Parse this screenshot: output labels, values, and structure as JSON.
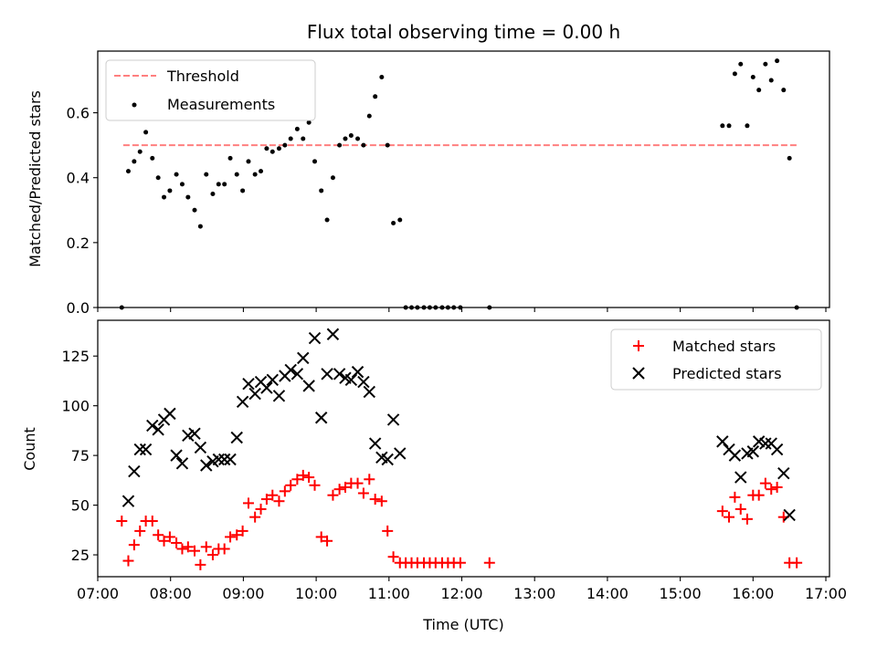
{
  "chart_data": [
    {
      "type": "scatter",
      "title": "Flux total observing time = 0.00 h",
      "ylabel": "Matched/Predicted stars",
      "xlabel": "",
      "xlim": [
        7.0,
        17.05
      ],
      "ylim": [
        0.0,
        0.79
      ],
      "xticks": [
        7,
        8,
        9,
        10,
        11,
        12,
        13,
        14,
        15,
        16,
        17
      ],
      "yticks": [
        0.0,
        0.2,
        0.4,
        0.6
      ],
      "ytick_labels": [
        "0.0",
        "0.2",
        "0.4",
        "0.6"
      ],
      "legend_position": "upper-left",
      "threshold": {
        "name": "Threshold",
        "y": 0.5,
        "x_range": [
          7.35,
          16.6
        ],
        "color": "#ff7f7f",
        "style": "dashed"
      },
      "series": [
        {
          "name": "Measurements",
          "color": "#000000",
          "marker": "dot",
          "points": [
            [
              7.33,
              0.0
            ],
            [
              7.42,
              0.42
            ],
            [
              7.5,
              0.45
            ],
            [
              7.58,
              0.48
            ],
            [
              7.66,
              0.54
            ],
            [
              7.75,
              0.46
            ],
            [
              7.83,
              0.4
            ],
            [
              7.91,
              0.34
            ],
            [
              7.99,
              0.36
            ],
            [
              8.08,
              0.41
            ],
            [
              8.16,
              0.38
            ],
            [
              8.24,
              0.34
            ],
            [
              8.33,
              0.3
            ],
            [
              8.41,
              0.25
            ],
            [
              8.49,
              0.41
            ],
            [
              8.58,
              0.35
            ],
            [
              8.66,
              0.38
            ],
            [
              8.74,
              0.38
            ],
            [
              8.82,
              0.46
            ],
            [
              8.91,
              0.41
            ],
            [
              8.99,
              0.36
            ],
            [
              9.07,
              0.45
            ],
            [
              9.16,
              0.41
            ],
            [
              9.24,
              0.42
            ],
            [
              9.32,
              0.49
            ],
            [
              9.4,
              0.48
            ],
            [
              9.49,
              0.49
            ],
            [
              9.57,
              0.5
            ],
            [
              9.65,
              0.52
            ],
            [
              9.74,
              0.55
            ],
            [
              9.82,
              0.52
            ],
            [
              9.9,
              0.57
            ],
            [
              9.98,
              0.45
            ],
            [
              10.07,
              0.36
            ],
            [
              10.15,
              0.27
            ],
            [
              10.23,
              0.4
            ],
            [
              10.32,
              0.5
            ],
            [
              10.4,
              0.52
            ],
            [
              10.48,
              0.53
            ],
            [
              10.57,
              0.52
            ],
            [
              10.65,
              0.5
            ],
            [
              10.73,
              0.59
            ],
            [
              10.81,
              0.65
            ],
            [
              10.9,
              0.71
            ],
            [
              10.98,
              0.5
            ],
            [
              11.06,
              0.26
            ],
            [
              11.15,
              0.27
            ],
            [
              11.23,
              0.0
            ],
            [
              11.31,
              0.0
            ],
            [
              11.39,
              0.0
            ],
            [
              11.48,
              0.0
            ],
            [
              11.56,
              0.0
            ],
            [
              11.64,
              0.0
            ],
            [
              11.73,
              0.0
            ],
            [
              11.81,
              0.0
            ],
            [
              11.89,
              0.0
            ],
            [
              11.98,
              0.0
            ],
            [
              12.38,
              0.0
            ],
            [
              15.58,
              0.56
            ],
            [
              15.67,
              0.56
            ],
            [
              15.75,
              0.72
            ],
            [
              15.83,
              0.75
            ],
            [
              15.92,
              0.56
            ],
            [
              16.0,
              0.71
            ],
            [
              16.08,
              0.67
            ],
            [
              16.17,
              0.75
            ],
            [
              16.25,
              0.7
            ],
            [
              16.33,
              0.76
            ],
            [
              16.42,
              0.67
            ],
            [
              16.5,
              0.46
            ],
            [
              16.6,
              0.0
            ]
          ]
        }
      ]
    },
    {
      "type": "scatter",
      "title": "",
      "ylabel": "Count",
      "xlabel": "Time (UTC)",
      "xlim": [
        7.0,
        17.05
      ],
      "ylim": [
        14,
        143
      ],
      "xticks": [
        7,
        8,
        9,
        10,
        11,
        12,
        13,
        14,
        15,
        16,
        17
      ],
      "xtick_labels": [
        "07:00",
        "08:00",
        "09:00",
        "10:00",
        "11:00",
        "12:00",
        "13:00",
        "14:00",
        "15:00",
        "16:00",
        "17:00"
      ],
      "yticks": [
        25,
        50,
        75,
        100,
        125
      ],
      "ytick_labels": [
        "25",
        "50",
        "75",
        "100",
        "125"
      ],
      "legend_position": "upper-right",
      "series": [
        {
          "name": "Matched stars",
          "color": "#ff0000",
          "marker": "plus",
          "points": [
            [
              7.33,
              42
            ],
            [
              7.42,
              22
            ],
            [
              7.5,
              30
            ],
            [
              7.58,
              37
            ],
            [
              7.66,
              42
            ],
            [
              7.75,
              42
            ],
            [
              7.83,
              35
            ],
            [
              7.91,
              32
            ],
            [
              7.99,
              34
            ],
            [
              8.08,
              31
            ],
            [
              8.16,
              28
            ],
            [
              8.24,
              29
            ],
            [
              8.33,
              27
            ],
            [
              8.41,
              20
            ],
            [
              8.49,
              29
            ],
            [
              8.58,
              25
            ],
            [
              8.66,
              28
            ],
            [
              8.74,
              28
            ],
            [
              8.82,
              34
            ],
            [
              8.91,
              35
            ],
            [
              8.99,
              37
            ],
            [
              9.07,
              51
            ],
            [
              9.16,
              44
            ],
            [
              9.24,
              48
            ],
            [
              9.32,
              53
            ],
            [
              9.4,
              55
            ],
            [
              9.49,
              52
            ],
            [
              9.57,
              57
            ],
            [
              9.65,
              60
            ],
            [
              9.74,
              63
            ],
            [
              9.82,
              65
            ],
            [
              9.9,
              64
            ],
            [
              9.98,
              60
            ],
            [
              10.07,
              34
            ],
            [
              10.15,
              32
            ],
            [
              10.23,
              55
            ],
            [
              10.32,
              58
            ],
            [
              10.4,
              59
            ],
            [
              10.48,
              61
            ],
            [
              10.57,
              61
            ],
            [
              10.65,
              56
            ],
            [
              10.73,
              63
            ],
            [
              10.81,
              53
            ],
            [
              10.9,
              52
            ],
            [
              10.98,
              37
            ],
            [
              11.06,
              24
            ],
            [
              11.15,
              21
            ],
            [
              11.23,
              21
            ],
            [
              11.31,
              21
            ],
            [
              11.39,
              21
            ],
            [
              11.48,
              21
            ],
            [
              11.56,
              21
            ],
            [
              11.64,
              21
            ],
            [
              11.73,
              21
            ],
            [
              11.81,
              21
            ],
            [
              11.89,
              21
            ],
            [
              11.98,
              21
            ],
            [
              12.38,
              21
            ],
            [
              15.58,
              47
            ],
            [
              15.67,
              44
            ],
            [
              15.75,
              54
            ],
            [
              15.83,
              48
            ],
            [
              15.92,
              43
            ],
            [
              16.0,
              55
            ],
            [
              16.08,
              55
            ],
            [
              16.17,
              61
            ],
            [
              16.25,
              58
            ],
            [
              16.33,
              59
            ],
            [
              16.42,
              44
            ],
            [
              16.5,
              21
            ],
            [
              16.6,
              21
            ]
          ]
        },
        {
          "name": "Predicted stars",
          "color": "#000000",
          "marker": "x",
          "points": [
            [
              7.42,
              52
            ],
            [
              7.5,
              67
            ],
            [
              7.58,
              78
            ],
            [
              7.66,
              78
            ],
            [
              7.75,
              90
            ],
            [
              7.83,
              88
            ],
            [
              7.91,
              93
            ],
            [
              7.99,
              96
            ],
            [
              8.08,
              75
            ],
            [
              8.16,
              71
            ],
            [
              8.24,
              85
            ],
            [
              8.33,
              86
            ],
            [
              8.41,
              79
            ],
            [
              8.49,
              70
            ],
            [
              8.58,
              72
            ],
            [
              8.66,
              73
            ],
            [
              8.74,
              73
            ],
            [
              8.82,
              73
            ],
            [
              8.91,
              84
            ],
            [
              8.99,
              102
            ],
            [
              9.07,
              111
            ],
            [
              9.16,
              106
            ],
            [
              9.24,
              112
            ],
            [
              9.32,
              109
            ],
            [
              9.4,
              113
            ],
            [
              9.49,
              105
            ],
            [
              9.57,
              115
            ],
            [
              9.65,
              118
            ],
            [
              9.74,
              116
            ],
            [
              9.82,
              124
            ],
            [
              9.9,
              110
            ],
            [
              9.98,
              134
            ],
            [
              10.07,
              94
            ],
            [
              10.15,
              116
            ],
            [
              10.23,
              136
            ],
            [
              10.32,
              116
            ],
            [
              10.4,
              114
            ],
            [
              10.48,
              113
            ],
            [
              10.57,
              117
            ],
            [
              10.65,
              112
            ],
            [
              10.73,
              107
            ],
            [
              10.81,
              81
            ],
            [
              10.9,
              74
            ],
            [
              10.98,
              73
            ],
            [
              11.06,
              93
            ],
            [
              11.15,
              76
            ],
            [
              15.58,
              82
            ],
            [
              15.67,
              78
            ],
            [
              15.75,
              75
            ],
            [
              15.83,
              64
            ],
            [
              15.92,
              76
            ],
            [
              16.0,
              77
            ],
            [
              16.08,
              82
            ],
            [
              16.17,
              81
            ],
            [
              16.25,
              81
            ],
            [
              16.33,
              78
            ],
            [
              16.42,
              66
            ],
            [
              16.5,
              45
            ]
          ]
        }
      ]
    }
  ]
}
